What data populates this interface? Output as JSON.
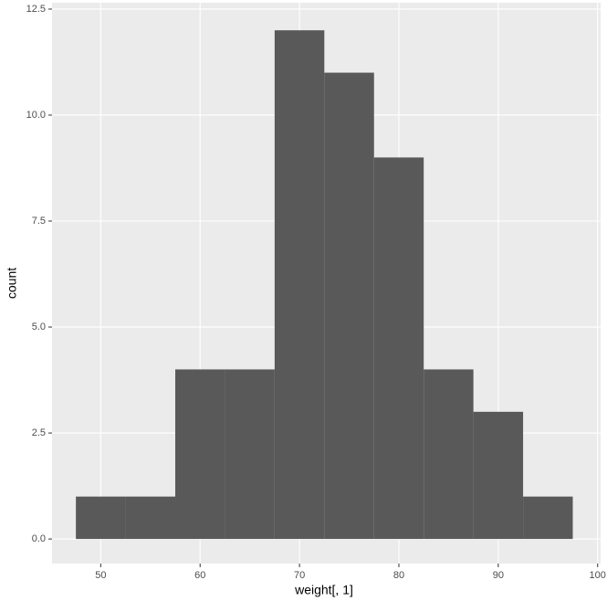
{
  "chart_data": {
    "type": "histogram",
    "x_label": "weight[, 1]",
    "y_label": "count",
    "bins": [
      47.5,
      52.5,
      57.5,
      62.5,
      67.5,
      72.5,
      77.5,
      82.5,
      87.5,
      92.5,
      97.5
    ],
    "counts": [
      1,
      1,
      4,
      4,
      12,
      11,
      9,
      4,
      3,
      1
    ],
    "color": "#595959",
    "xlim": [
      45.1,
      100.3
    ],
    "ylim": [
      -0.58,
      12.65
    ],
    "xticks": [
      50,
      60,
      70,
      80,
      90,
      100
    ],
    "yticks": [
      {
        "value": 0,
        "label": "0.0"
      },
      2.5,
      {
        "value": 5,
        "label": "5.0"
      },
      7.5,
      {
        "value": 10,
        "label": "10.0"
      },
      12.5
    ],
    "grid": true
  }
}
